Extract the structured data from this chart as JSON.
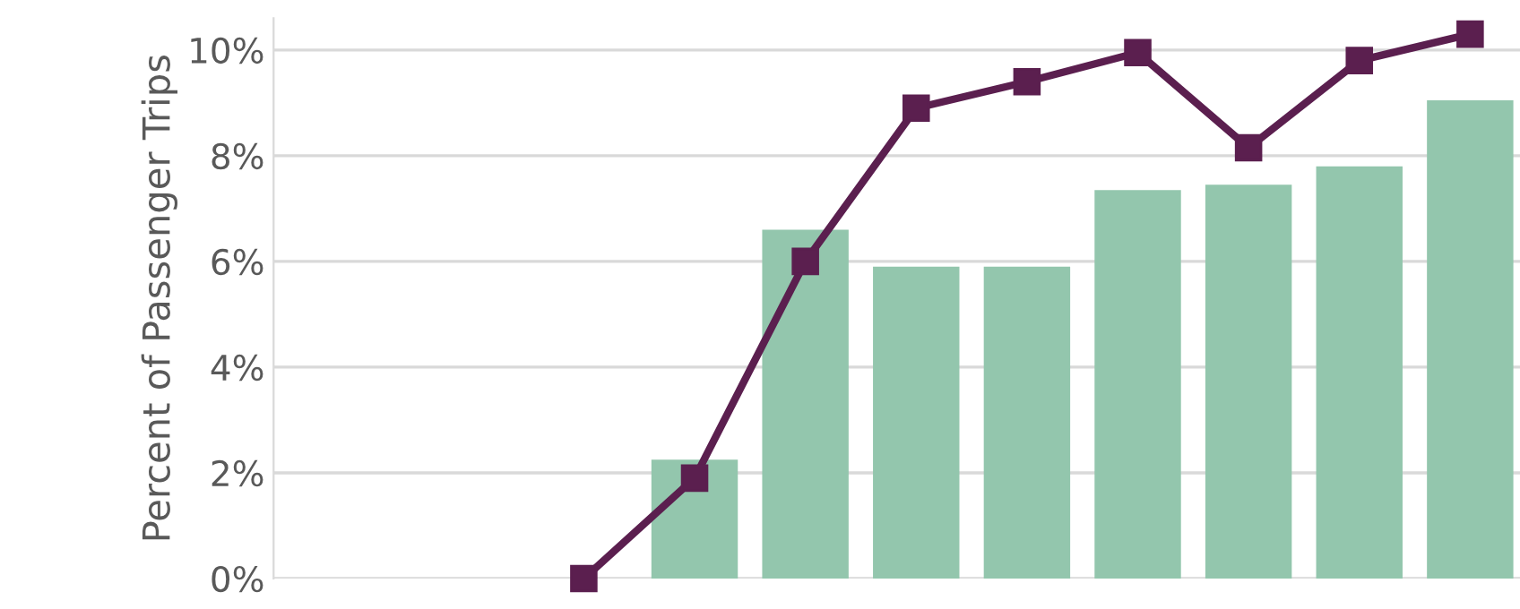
{
  "chart_data": {
    "type": "bar",
    "ylabel": "Percent of Passenger Trips",
    "categories": [
      null,
      null,
      null,
      null,
      null,
      null,
      null,
      null,
      null
    ],
    "series": [
      {
        "color": "#93c6ad",
        "values": [
          null,
          2.25,
          6.6,
          5.9,
          5.9,
          7.35,
          7.45,
          7.8,
          9.05
        ]
      },
      {
        "type": "line",
        "color": "#5b1f4f",
        "marker": "square",
        "values": [
          0,
          1.9,
          6.0,
          8.9,
          9.4,
          9.95,
          8.15,
          9.8,
          10.3
        ]
      }
    ],
    "ylim": [
      0,
      10.6
    ],
    "yticks": [
      {
        "value": 0,
        "label": "0%"
      },
      {
        "value": 2,
        "label": "2%"
      },
      {
        "value": 4,
        "label": "4%"
      },
      {
        "value": 6,
        "label": "6%"
      },
      {
        "value": 8,
        "label": "8%"
      },
      {
        "value": 10,
        "label": "10%"
      }
    ],
    "grid": "y",
    "tick_labels": "y"
  }
}
